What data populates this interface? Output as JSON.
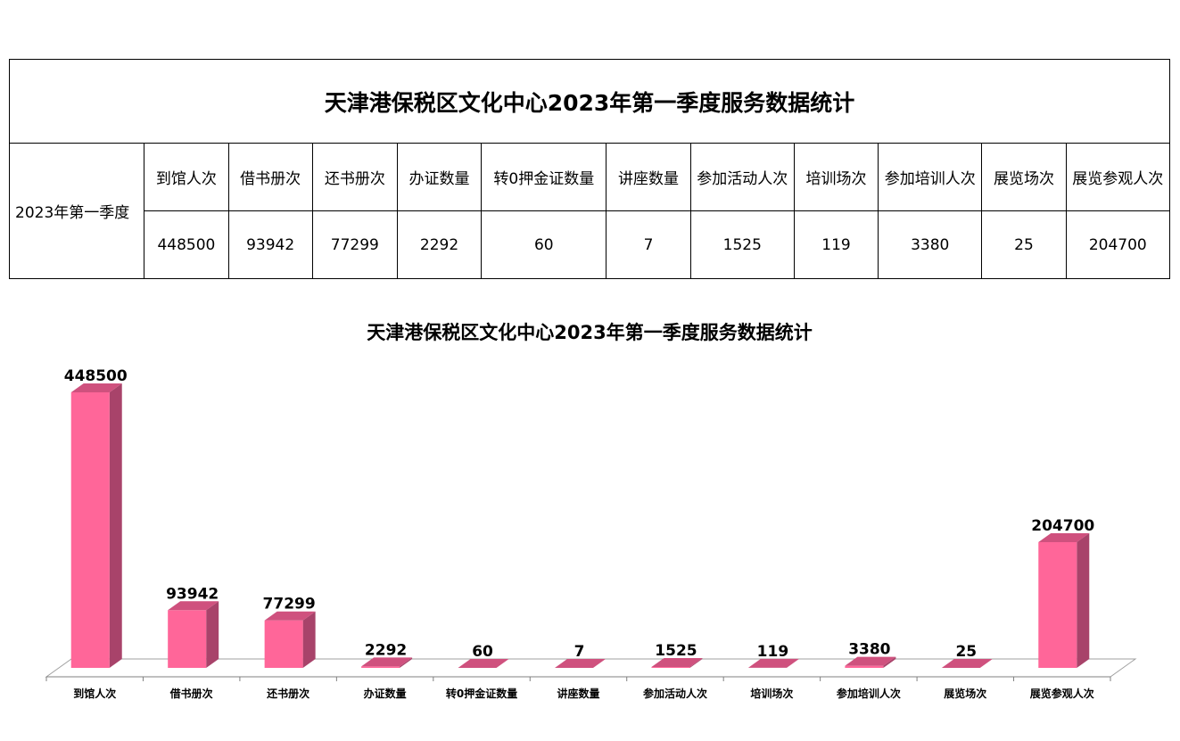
{
  "table": {
    "title": "天津港保税区文化中心2023年第一季度服务数据统计",
    "period_label": "2023年第一季度",
    "headers": [
      "到馆人次",
      "借书册次",
      "还书册次",
      "办证数量",
      "转0押金证数量",
      "讲座数量",
      "参加活动人次",
      "培训场次",
      "参加培训人次",
      "展览场次",
      "展览参观人次"
    ],
    "values": [
      "448500",
      "93942",
      "77299",
      "2292",
      "60",
      "7",
      "1525",
      "119",
      "3380",
      "25",
      "204700"
    ]
  },
  "chart_data": {
    "type": "bar",
    "title": "天津港保税区文化中心2023年第一季度服务数据统计",
    "categories": [
      "到馆人次",
      "借书册次",
      "还书册次",
      "办证数量",
      "转0押金证数量",
      "讲座数量",
      "参加活动人次",
      "培训场次",
      "参加培训人次",
      "展览场次",
      "展览参观人次"
    ],
    "values": [
      448500,
      93942,
      77299,
      2292,
      60,
      7,
      1525,
      119,
      3380,
      25,
      204700
    ],
    "ylim": [
      0,
      448500
    ],
    "style": "3d-column",
    "grid": false,
    "legend": "none",
    "colors": {
      "front": "#ff6699",
      "side": "#a8436a",
      "top": "#cf517e"
    }
  }
}
